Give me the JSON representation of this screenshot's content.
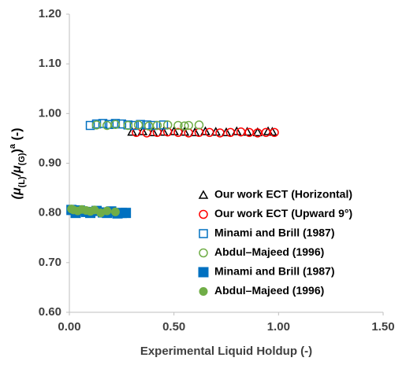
{
  "chart_data": {
    "type": "scatter",
    "x_label": "Experimental Liquid Holdup (-)",
    "y_label": [
      "(μ",
      "(L)",
      "/μ",
      "(G)",
      ")",
      "a",
      " (-)"
    ],
    "xlim": [
      0,
      1.5
    ],
    "xticks": [
      {
        "value": 0,
        "label": "0.00"
      },
      {
        "value": 0.5,
        "label": "0.50"
      },
      {
        "value": 1,
        "label": "1.00"
      },
      {
        "value": 1.5,
        "label": "1.50"
      }
    ],
    "ylim": [
      0.6,
      1.2
    ],
    "yticks": [
      {
        "value": 0.6,
        "label": "0.60"
      },
      {
        "value": 0.7,
        "label": "0.70"
      },
      {
        "value": 0.8,
        "label": "0.80"
      },
      {
        "value": 0.9,
        "label": "0.90"
      },
      {
        "value": 1.0,
        "label": "1.00"
      },
      {
        "value": 1.1,
        "label": "1.10"
      },
      {
        "value": 1.2,
        "label": "1.20"
      }
    ],
    "grid": false,
    "legend": "lower right",
    "series": [
      {
        "name": "Our work ECT (Horizontal)",
        "color": "#000000",
        "marker": "triangle",
        "filled": false,
        "x": [
          0.3,
          0.35,
          0.4,
          0.45,
          0.5,
          0.55,
          0.6,
          0.65,
          0.7,
          0.75,
          0.8,
          0.85,
          0.9,
          0.95,
          0.97
        ],
        "values": [
          0.963,
          0.964,
          0.962,
          0.963,
          0.964,
          0.963,
          0.962,
          0.964,
          0.963,
          0.962,
          0.964,
          0.963,
          0.962,
          0.964,
          0.963
        ]
      },
      {
        "name": "Our work ECT (Upward 9°)",
        "color": "#ff0000",
        "marker": "circle",
        "filled": false,
        "x": [
          0.32,
          0.37,
          0.42,
          0.47,
          0.52,
          0.57,
          0.62,
          0.67,
          0.72,
          0.77,
          0.82,
          0.86,
          0.9,
          0.94,
          0.98
        ],
        "values": [
          0.962,
          0.961,
          0.962,
          0.963,
          0.962,
          0.961,
          0.962,
          0.962,
          0.961,
          0.962,
          0.963,
          0.962,
          0.961,
          0.962,
          0.962
        ]
      },
      {
        "name": "Minami and Brill (1987)",
        "color": "#0070c0",
        "marker": "square",
        "filled": false,
        "x": [
          0.1,
          0.13,
          0.16,
          0.19,
          0.22,
          0.25,
          0.28,
          0.31,
          0.34,
          0.37,
          0.4,
          0.45
        ],
        "values": [
          0.976,
          0.979,
          0.98,
          0.978,
          0.98,
          0.979,
          0.977,
          0.976,
          0.978,
          0.977,
          0.976,
          0.977
        ]
      },
      {
        "name": "Abdul–Majeed (1996)",
        "color": "#70ad47",
        "marker": "circle",
        "filled": false,
        "x": [
          0.13,
          0.18,
          0.22,
          0.28,
          0.33,
          0.38,
          0.42,
          0.47,
          0.52,
          0.55,
          0.57,
          0.62
        ],
        "values": [
          0.977,
          0.976,
          0.978,
          0.976,
          0.977,
          0.975,
          0.976,
          0.977,
          0.976,
          0.975,
          0.976,
          0.977
        ]
      },
      {
        "name": "Minami and Brill (1987)",
        "color": "#0070c0",
        "marker": "square",
        "filled": true,
        "x": [
          0.01,
          0.03,
          0.05,
          0.08,
          0.1,
          0.13,
          0.16,
          0.18,
          0.2,
          0.23,
          0.25,
          0.27
        ],
        "values": [
          0.806,
          0.8,
          0.805,
          0.802,
          0.8,
          0.804,
          0.801,
          0.8,
          0.803,
          0.799,
          0.8,
          0.8
        ]
      },
      {
        "name": "Abdul–Majeed (1996)",
        "color": "#70ad47",
        "marker": "circle",
        "filled": true,
        "x": [
          0.01,
          0.02,
          0.04,
          0.06,
          0.08,
          0.1,
          0.12,
          0.15,
          0.18,
          0.22
        ],
        "values": [
          0.808,
          0.806,
          0.804,
          0.807,
          0.805,
          0.803,
          0.806,
          0.8,
          0.804,
          0.802
        ]
      }
    ]
  }
}
